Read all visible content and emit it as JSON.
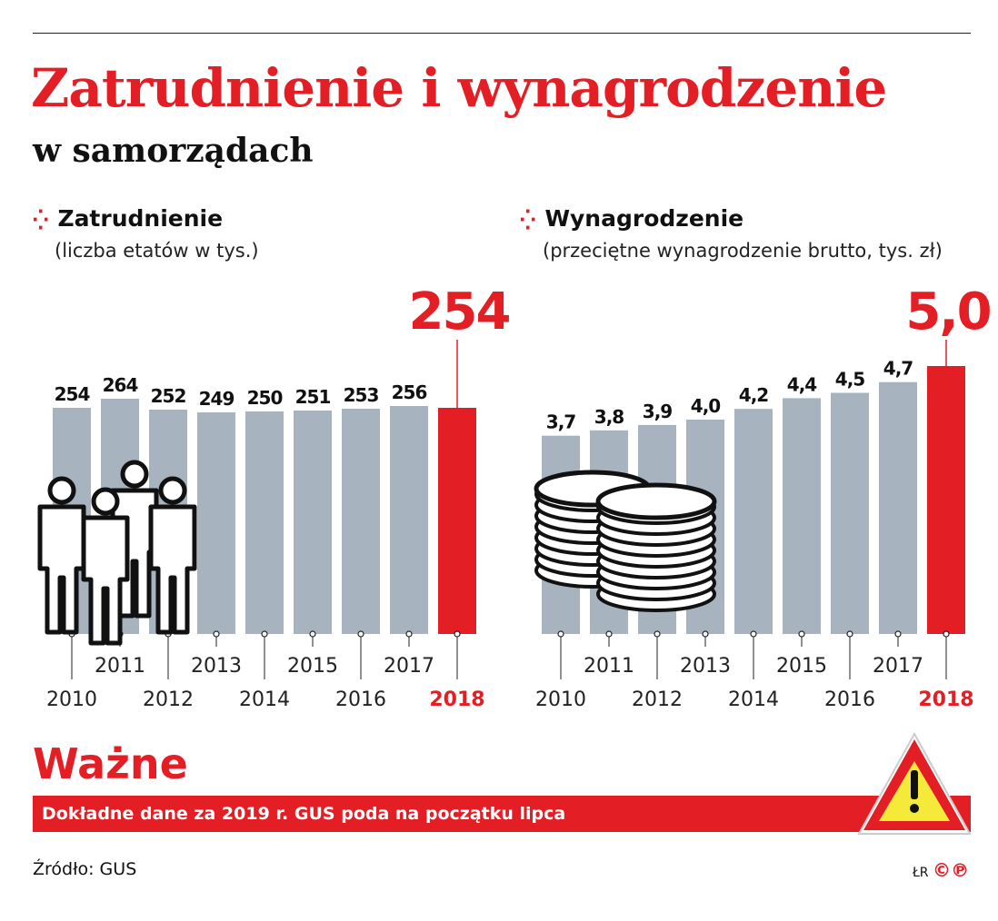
{
  "title": "Zatrudnienie i wynagrodzenie",
  "subtitle": "w samorządach",
  "colors": {
    "accent": "#e31e24",
    "bar": "#a7b4bf",
    "warning_yellow": "#f5ea3a"
  },
  "chart_data": [
    {
      "type": "bar",
      "title": "Zatrudnienie",
      "subtitle": "(liczba etatów w tys.)",
      "categories": [
        "2010",
        "2011",
        "2012",
        "2013",
        "2014",
        "2015",
        "2016",
        "2017",
        "2018"
      ],
      "values": [
        254,
        264,
        252,
        249,
        250,
        251,
        253,
        256,
        254
      ],
      "labels": [
        "254",
        "264",
        "252",
        "249",
        "250",
        "251",
        "253",
        "256",
        "254"
      ],
      "highlight": "2018",
      "icon": "people-icon"
    },
    {
      "type": "bar",
      "title": "Wynagrodzenie",
      "subtitle": "(przeciętne wynagrodzenie brutto, tys. zł)",
      "categories": [
        "2010",
        "2011",
        "2012",
        "2013",
        "2014",
        "2015",
        "2016",
        "2017",
        "2018"
      ],
      "values": [
        3.7,
        3.8,
        3.9,
        4.0,
        4.2,
        4.4,
        4.5,
        4.7,
        5.0
      ],
      "labels": [
        "3,7",
        "3,8",
        "3,9",
        "4,0",
        "4,2",
        "4,4",
        "4,5",
        "4,7",
        "5,0"
      ],
      "highlight": "2018",
      "icon": "coins-icon"
    }
  ],
  "notice": {
    "heading": "Ważne",
    "text": "Dokładne dane za 2019 r. GUS poda na początku lipca",
    "icon": "warning-icon"
  },
  "source": "Źródło: GUS",
  "credit": {
    "initials": "ŁR",
    "logo": "©℗"
  }
}
